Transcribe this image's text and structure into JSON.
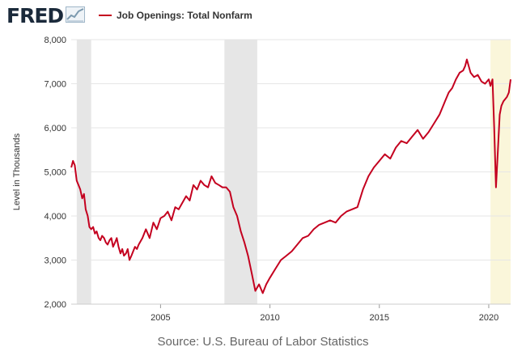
{
  "header": {
    "logo_text": "FRED",
    "logo_icon": "trend-line-chart-icon",
    "legend_label": "Job Openings: Total Nonfarm",
    "legend_color": "#c4001f"
  },
  "source": "Source: U.S. Bureau of Labor Statistics",
  "colors": {
    "line": "#c4001f",
    "recession": "#e6e6e6",
    "current_period": "#faf6da",
    "grid": "#e6e6e6",
    "axis_text": "#333333",
    "source_text": "#666666"
  },
  "chart_data": {
    "type": "line",
    "title": "",
    "xlabel": "",
    "ylabel": "Level in Thousands",
    "xlim": [
      2000.917,
      2021.0
    ],
    "ylim": [
      2000,
      8000
    ],
    "x_ticks": [
      2005,
      2010,
      2015,
      2020
    ],
    "x_tick_labels": [
      "2005",
      "2010",
      "2015",
      "2020"
    ],
    "y_ticks": [
      2000,
      3000,
      4000,
      5000,
      6000,
      7000,
      8000
    ],
    "y_tick_labels": [
      "2,000",
      "3,000",
      "4,000",
      "5,000",
      "6,000",
      "7,000",
      "8,000"
    ],
    "grid": true,
    "legend": "top",
    "shaded_periods": [
      {
        "type": "recession",
        "start": 2001.17,
        "end": 2001.83
      },
      {
        "type": "recession",
        "start": 2007.92,
        "end": 2009.42
      },
      {
        "type": "recession",
        "start": 2020.08,
        "end": 2021.0
      }
    ],
    "series": [
      {
        "name": "Job Openings: Total Nonfarm",
        "x": [
          2000.92,
          2001.0,
          2001.08,
          2001.17,
          2001.25,
          2001.33,
          2001.42,
          2001.5,
          2001.58,
          2001.67,
          2001.75,
          2001.83,
          2001.92,
          2002.0,
          2002.08,
          2002.17,
          2002.25,
          2002.33,
          2002.42,
          2002.5,
          2002.58,
          2002.67,
          2002.75,
          2002.83,
          2002.92,
          2003.0,
          2003.08,
          2003.17,
          2003.25,
          2003.33,
          2003.42,
          2003.5,
          2003.58,
          2003.67,
          2003.75,
          2003.83,
          2003.92,
          2004.0,
          2004.17,
          2004.33,
          2004.5,
          2004.67,
          2004.83,
          2005.0,
          2005.17,
          2005.33,
          2005.5,
          2005.67,
          2005.83,
          2006.0,
          2006.17,
          2006.33,
          2006.5,
          2006.67,
          2006.83,
          2007.0,
          2007.17,
          2007.33,
          2007.5,
          2007.67,
          2007.83,
          2008.0,
          2008.17,
          2008.33,
          2008.5,
          2008.67,
          2008.83,
          2009.0,
          2009.17,
          2009.33,
          2009.5,
          2009.67,
          2009.83,
          2010.0,
          2010.25,
          2010.5,
          2010.75,
          2011.0,
          2011.25,
          2011.5,
          2011.75,
          2012.0,
          2012.25,
          2012.5,
          2012.75,
          2013.0,
          2013.25,
          2013.5,
          2013.75,
          2014.0,
          2014.25,
          2014.5,
          2014.75,
          2015.0,
          2015.25,
          2015.5,
          2015.75,
          2016.0,
          2016.25,
          2016.5,
          2016.75,
          2017.0,
          2017.25,
          2017.5,
          2017.75,
          2018.0,
          2018.17,
          2018.33,
          2018.5,
          2018.67,
          2018.83,
          2018.92,
          2019.0,
          2019.17,
          2019.33,
          2019.5,
          2019.67,
          2019.83,
          2020.0,
          2020.08,
          2020.17,
          2020.25,
          2020.33,
          2020.42,
          2020.5,
          2020.58,
          2020.67,
          2020.75,
          2020.83,
          2020.92,
          2021.0
        ],
        "values": [
          5100,
          5250,
          5150,
          4800,
          4700,
          4600,
          4400,
          4500,
          4150,
          4000,
          3750,
          3700,
          3750,
          3600,
          3650,
          3500,
          3450,
          3550,
          3500,
          3400,
          3350,
          3450,
          3500,
          3300,
          3400,
          3500,
          3300,
          3150,
          3250,
          3100,
          3150,
          3250,
          3000,
          3100,
          3200,
          3300,
          3250,
          3350,
          3500,
          3700,
          3500,
          3850,
          3700,
          3950,
          4000,
          4100,
          3900,
          4200,
          4150,
          4300,
          4450,
          4350,
          4700,
          4600,
          4800,
          4700,
          4650,
          4900,
          4750,
          4700,
          4650,
          4650,
          4550,
          4200,
          4000,
          3650,
          3400,
          3100,
          2700,
          2300,
          2450,
          2250,
          2450,
          2600,
          2800,
          3000,
          3100,
          3200,
          3350,
          3500,
          3550,
          3700,
          3800,
          3850,
          3900,
          3850,
          4000,
          4100,
          4150,
          4200,
          4600,
          4900,
          5100,
          5250,
          5400,
          5300,
          5550,
          5700,
          5650,
          5800,
          5950,
          5750,
          5900,
          6100,
          6300,
          6600,
          6800,
          6900,
          7100,
          7250,
          7300,
          7400,
          7550,
          7250,
          7150,
          7200,
          7050,
          7000,
          7100,
          6950,
          7100,
          6000,
          4650,
          5500,
          6300,
          6500,
          6600,
          6650,
          6700,
          6800,
          7100
        ]
      }
    ]
  }
}
